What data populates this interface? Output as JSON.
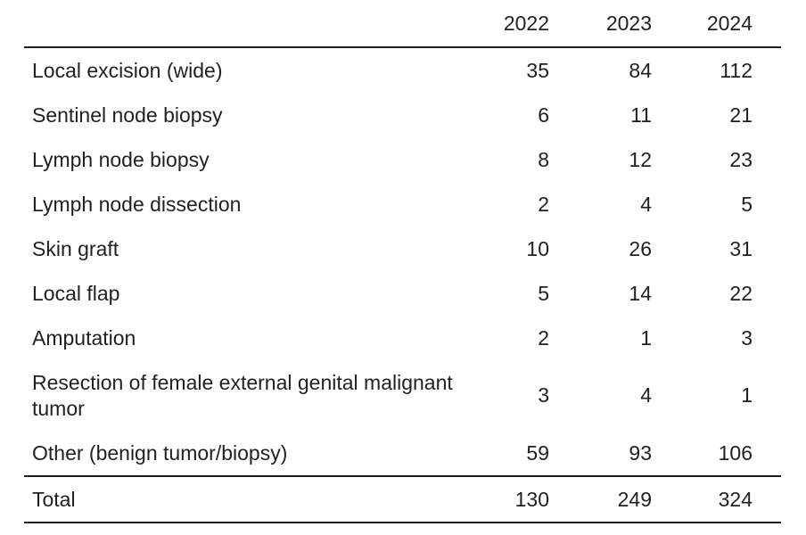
{
  "table": {
    "columns": [
      "2022",
      "2023",
      "2024"
    ],
    "rows": [
      {
        "label": "Local excision (wide)",
        "values": [
          35,
          84,
          112
        ]
      },
      {
        "label": "Sentinel node biopsy",
        "values": [
          6,
          11,
          21
        ]
      },
      {
        "label": "Lymph node biopsy",
        "values": [
          8,
          12,
          23
        ]
      },
      {
        "label": "Lymph node dissection",
        "values": [
          2,
          4,
          5
        ]
      },
      {
        "label": "Skin graft",
        "values": [
          10,
          26,
          31
        ]
      },
      {
        "label": "Local flap",
        "values": [
          5,
          14,
          22
        ]
      },
      {
        "label": "Amputation",
        "values": [
          2,
          1,
          3
        ]
      },
      {
        "label": "Resection of female external genital malignant tumor",
        "values": [
          3,
          4,
          1
        ]
      },
      {
        "label": "Other (benign tumor/biopsy)",
        "values": [
          59,
          93,
          106
        ]
      }
    ],
    "total": {
      "label": "Total",
      "values": [
        130,
        249,
        324
      ]
    }
  },
  "chart_data": {
    "type": "table",
    "columns": [
      "",
      "2022",
      "2023",
      "2024"
    ],
    "rows": [
      [
        "Local excision (wide)",
        35,
        84,
        112
      ],
      [
        "Sentinel node biopsy",
        6,
        11,
        21
      ],
      [
        "Lymph node biopsy",
        8,
        12,
        23
      ],
      [
        "Lymph node dissection",
        2,
        4,
        5
      ],
      [
        "Skin graft",
        10,
        26,
        31
      ],
      [
        "Local flap",
        5,
        14,
        22
      ],
      [
        "Amputation",
        2,
        1,
        3
      ],
      [
        "Resection of female external genital malignant tumor",
        3,
        4,
        1
      ],
      [
        "Other (benign tumor/biopsy)",
        59,
        93,
        106
      ],
      [
        "Total",
        130,
        249,
        324
      ]
    ]
  },
  "colors": {
    "text": "#231f20",
    "rule": "#1d1d1d",
    "background": "#ffffff"
  }
}
